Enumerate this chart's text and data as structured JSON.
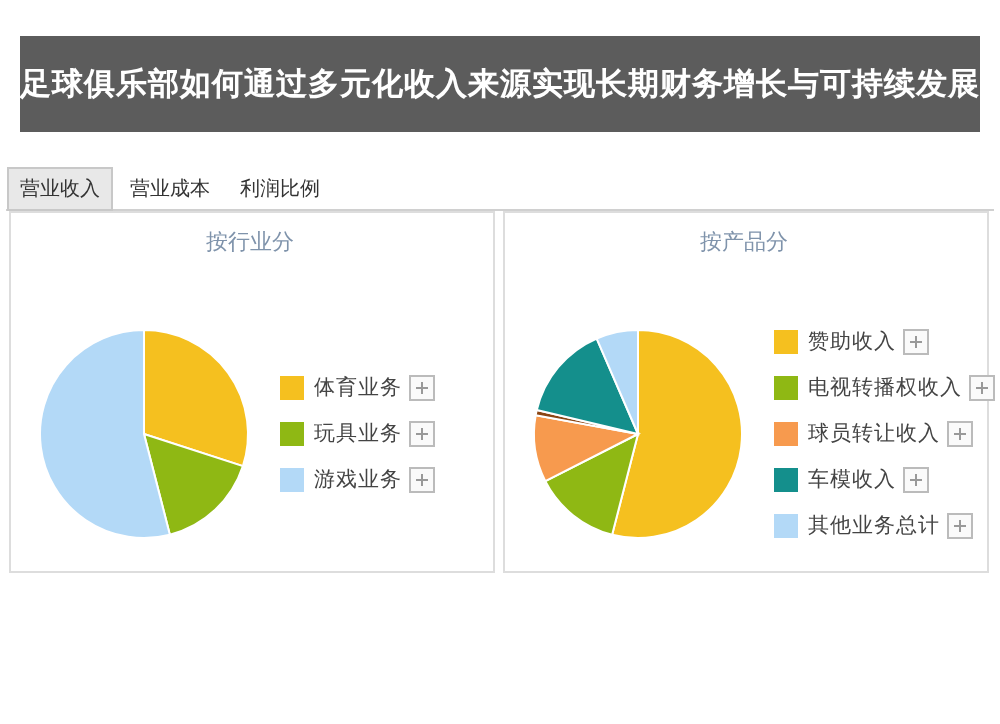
{
  "chart_data": [
    {
      "type": "other",
      "annotations": [
        "营业收入",
        "营业成本",
        "利润比例",
        "足球俱乐部如何通过多元化收入来源实现长期财务增长与可持续发展"
      ]
    },
    {
      "type": "pie",
      "title": "按行业分",
      "categories": [
        "体育业务",
        "玩具业务",
        "游戏业务"
      ],
      "values": [
        30,
        16,
        54
      ],
      "colors": [
        "#f5c01f",
        "#8fb814",
        "#b3d9f7"
      ],
      "legend": "right"
    },
    {
      "type": "pie",
      "title": "按产品分",
      "categories": [
        "赞助收入",
        "电视转播权收入",
        "球员转让收入",
        null,
        "车模收入",
        "其他业务总计"
      ],
      "values": [
        54,
        13.5,
        10.4,
        0.8,
        14.8,
        6.5
      ],
      "colors": [
        "#f5c01f",
        "#8fb814",
        "#f79a4e",
        "#8b4513",
        "#148f8c",
        "#b3d9f7"
      ],
      "legend": "right"
    }
  ]
}
